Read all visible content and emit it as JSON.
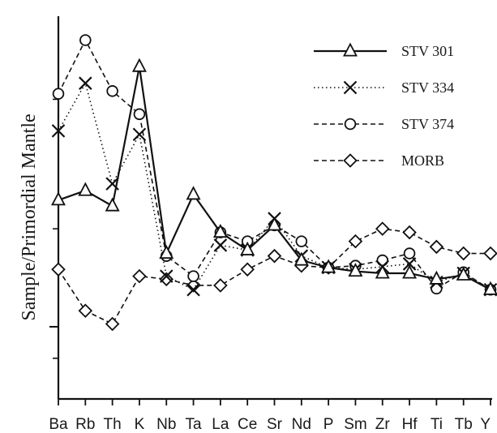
{
  "chart_data": {
    "type": "line",
    "title": "",
    "xlabel": "",
    "ylabel": "Sample/Primordial Mantle",
    "y_scale": "log",
    "y_tick_labels_shown": false,
    "grid": false,
    "legend_position": "top-right",
    "categories": [
      "Ba",
      "Rb",
      "Th",
      "K",
      "Nb",
      "Ta",
      "La",
      "Ce",
      "Sr",
      "Nd",
      "P",
      "Sm",
      "Zr",
      "Hf",
      "Ti",
      "Tb",
      "Y"
    ],
    "ylim": [
      0.6,
      9
    ],
    "series": [
      {
        "name": "STV 301",
        "marker": "triangle",
        "line": "solid",
        "color": "#111111",
        "values": [
          2.45,
          2.62,
          2.35,
          6.3,
          1.68,
          2.55,
          1.95,
          1.72,
          2.05,
          1.6,
          1.52,
          1.48,
          1.46,
          1.46,
          1.4,
          1.44,
          1.3
        ]
      },
      {
        "name": "STV 334",
        "marker": "x",
        "line": "dotted",
        "color": "#111111",
        "values": [
          4.0,
          5.6,
          2.75,
          3.9,
          1.43,
          1.3,
          1.78,
          1.72,
          2.15,
          1.65,
          1.52,
          1.5,
          1.53,
          1.56,
          1.37,
          1.46,
          1.3
        ]
      },
      {
        "name": "STV 374",
        "marker": "circle",
        "line": "dashed",
        "color": "#111111",
        "values": [
          5.2,
          7.6,
          5.3,
          4.5,
          1.65,
          1.43,
          1.95,
          1.83,
          2.05,
          1.83,
          1.52,
          1.54,
          1.6,
          1.68,
          1.31,
          1.47,
          1.3
        ]
      },
      {
        "name": "MORB",
        "marker": "diamond",
        "line": "dashed",
        "color": "#111111",
        "values": [
          1.5,
          1.12,
          1.02,
          1.43,
          1.4,
          1.34,
          1.34,
          1.5,
          1.65,
          1.54,
          1.52,
          1.83,
          2.0,
          1.95,
          1.76,
          1.68,
          1.68
        ]
      }
    ]
  }
}
